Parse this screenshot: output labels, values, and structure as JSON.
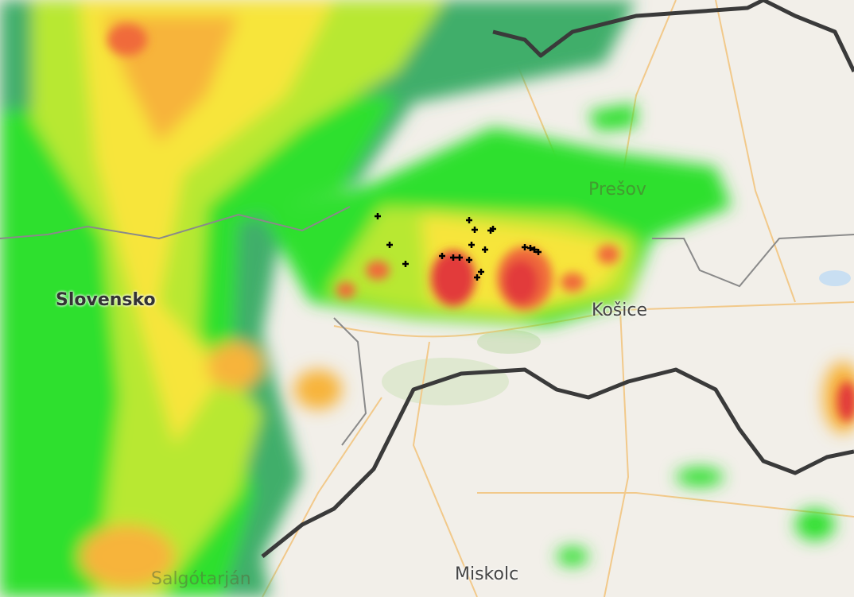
{
  "map": {
    "labels": {
      "slovensko": "Slovensko",
      "presov": "Prešov",
      "kosice": "Košice",
      "miskolc": "Miskolc",
      "salgotarjan": "Salgótarján"
    },
    "radar_colors": [
      "#2d6fb8",
      "#4a9fd0",
      "#3fc05a",
      "#2fe02f",
      "#b8e830",
      "#f7e53a",
      "#f7b43a",
      "#f06a3a",
      "#e23a3a"
    ],
    "border_color": "#3a3a3a",
    "road_color": "#f2c98a"
  }
}
